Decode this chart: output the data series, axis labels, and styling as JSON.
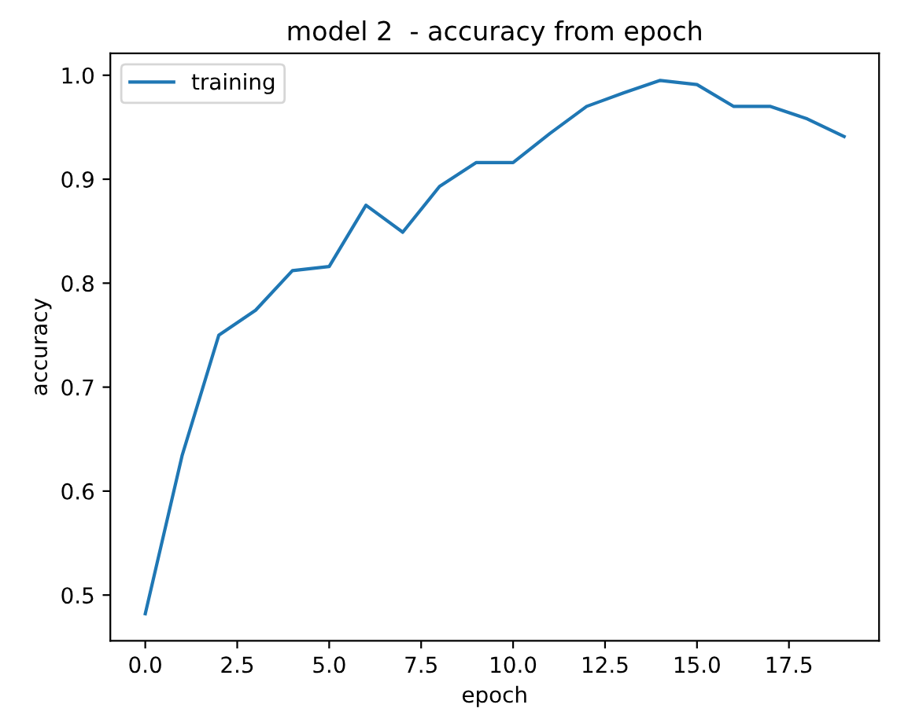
{
  "chart_data": {
    "type": "line",
    "title": "model 2  - accuracy from epoch",
    "xlabel": "epoch",
    "ylabel": "accuracy",
    "x": [
      0,
      1,
      2,
      3,
      4,
      5,
      6,
      7,
      8,
      9,
      10,
      11,
      12,
      13,
      14,
      15,
      16,
      17,
      18,
      19
    ],
    "series": [
      {
        "name": "training",
        "color": "#1f77b4",
        "values": [
          0.482,
          0.634,
          0.75,
          0.774,
          0.812,
          0.816,
          0.875,
          0.849,
          0.893,
          0.916,
          0.916,
          0.944,
          0.97,
          0.983,
          0.995,
          0.991,
          0.97,
          0.97,
          0.958,
          0.941
        ]
      }
    ],
    "xlim": [
      -0.95,
      19.95
    ],
    "xticks": [
      {
        "value": 0,
        "label": "0.0"
      },
      {
        "value": 2.5,
        "label": "2.5"
      },
      {
        "value": 5,
        "label": "5.0"
      },
      {
        "value": 7.5,
        "label": "7.5"
      },
      {
        "value": 10,
        "label": "10.0"
      },
      {
        "value": 12.5,
        "label": "12.5"
      },
      {
        "value": 15,
        "label": "15.0"
      },
      {
        "value": 17.5,
        "label": "17.5"
      }
    ],
    "ylim": [
      0.456,
      1.021
    ],
    "yticks": [
      {
        "value": 0.5,
        "label": "0.5"
      },
      {
        "value": 0.6,
        "label": "0.6"
      },
      {
        "value": 0.7,
        "label": "0.7"
      },
      {
        "value": 0.8,
        "label": "0.8"
      },
      {
        "value": 0.9,
        "label": "0.9"
      },
      {
        "value": 1.0,
        "label": "1.0"
      }
    ],
    "legend": "top left",
    "grid": false,
    "marker": "none",
    "line_style": "solid"
  }
}
